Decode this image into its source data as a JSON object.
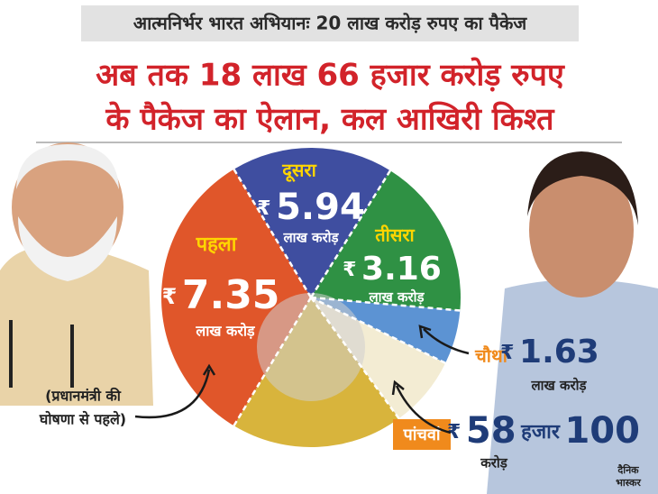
{
  "header": {
    "tag": "आत्मनिर्भर भारत अभियानः 20 लाख करोड़ रुपए का पैकेज",
    "headline": [
      "अब तक 18 लाख 66 हजार करोड़ रुपए",
      "के पैकेज का ऐलान, कल आखिरी किश्त"
    ]
  },
  "segments": [
    {
      "label": "पहला",
      "currency": "₹",
      "amount": "7.35",
      "unit": "लाख करोड़"
    },
    {
      "label": "दूसरा",
      "currency": "₹",
      "amount": "5.94",
      "unit": "लाख करोड़"
    },
    {
      "label": "तीसरा",
      "currency": "₹",
      "amount": "3.16",
      "unit": "लाख करोड़"
    },
    {
      "label": "चौथा",
      "currency": "₹",
      "amount": "1.63",
      "unit": "लाख करोड़"
    },
    {
      "label": "पांचवां",
      "currency": "₹",
      "amount": "58",
      "amount_unit": "हजार",
      "amount_rest": "100",
      "unit": "करोड़"
    }
  ],
  "note": [
    "(प्रधानमंत्री की",
    "घोषणा से पहले)"
  ],
  "logo": [
    "दैनिक",
    "भास्कर"
  ]
}
